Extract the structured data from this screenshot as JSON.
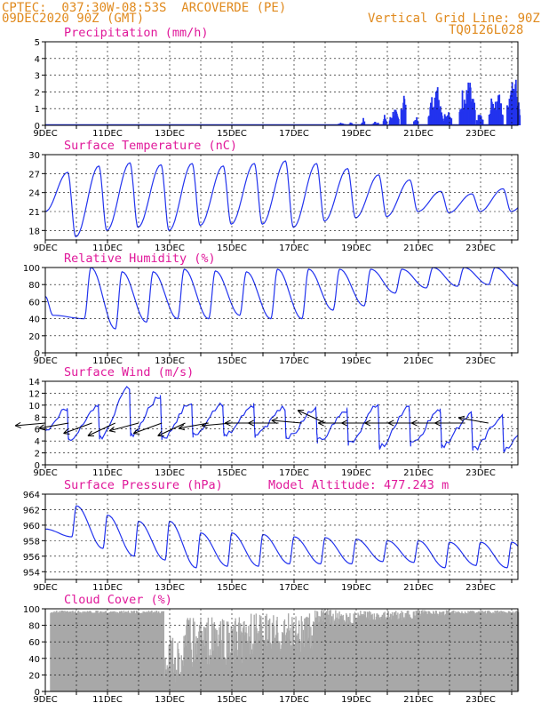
{
  "header": {
    "line1": "CPTEC:  037:30W-08:53S  ARCOVERDE (PE)",
    "line2": "09DEC2020 90Z (GMT)",
    "grid_note": "Vertical Grid Line: 90Z",
    "code": "TQ0126L028"
  },
  "colors": {
    "header": "#e08a1e",
    "title": "#e0189a",
    "line": "#2233ee",
    "cloud": "#a8a8a8",
    "grid": "#000000"
  },
  "x_labels": [
    "9DEC",
    "11DEC",
    "13DEC",
    "15DEC",
    "17DEC",
    "19DEC",
    "21DEC",
    "23DEC"
  ],
  "chart_data": [
    {
      "type": "bar",
      "title": "Precipitation (mm/h)",
      "ylim": [
        0,
        5
      ],
      "yticks": [
        0,
        1,
        2,
        3,
        4,
        5
      ],
      "x_unit": "days since 9DEC",
      "bursts": [
        [
          9.5,
          0.1,
          0.2
        ],
        [
          9.8,
          0.05,
          0.3
        ],
        [
          10.2,
          0.05,
          0.5
        ],
        [
          10.6,
          0.1,
          0.3
        ],
        [
          10.9,
          0.05,
          0.8
        ],
        [
          11.2,
          0.15,
          1.2
        ],
        [
          11.5,
          0.08,
          2.5
        ],
        [
          11.9,
          0.07,
          0.6
        ],
        [
          12.4,
          0.1,
          1.8
        ],
        [
          12.6,
          0.15,
          2.7
        ],
        [
          12.9,
          0.15,
          1.0
        ],
        [
          13.4,
          0.1,
          2.5
        ],
        [
          13.6,
          0.2,
          3.0
        ],
        [
          13.95,
          0.1,
          0.9
        ],
        [
          14.35,
          0.1,
          2.0
        ],
        [
          14.55,
          0.15,
          2.3
        ],
        [
          14.95,
          0.12,
          3.3
        ],
        [
          15.1,
          0.15,
          2.9
        ]
      ]
    },
    {
      "type": "line",
      "title": "Surface Temperature (nC)",
      "ylim": [
        16.5,
        30
      ],
      "yticks": [
        18,
        21,
        24,
        27,
        30
      ],
      "start": 21,
      "peak_hour": 0.22,
      "trough_hour": 0.98,
      "maxima": [
        27.2,
        28.2,
        28.7,
        28.4,
        28.6,
        28.2,
        28.6,
        29.0,
        28.6,
        27.8,
        26.8,
        26.0,
        24.2,
        23.8,
        24.6,
        24.0
      ],
      "minima": [
        17.0,
        18.0,
        18.5,
        18.0,
        18.8,
        19.0,
        19.0,
        18.5,
        19.5,
        20.0,
        20.2,
        21.0,
        20.8,
        21.0,
        21.0,
        20.5,
        21.0
      ]
    },
    {
      "type": "line",
      "title": "Relative Humidity (%)",
      "ylim": [
        0,
        100
      ],
      "yticks": [
        0,
        20,
        40,
        60,
        80,
        100
      ],
      "start": 66,
      "peak_hour": 0.97,
      "trough_hour": 0.25,
      "maxima": [
        100,
        95,
        95,
        98,
        96,
        95,
        98,
        98,
        98,
        98,
        98,
        100,
        100,
        100,
        100,
        100,
        100
      ],
      "minima": [
        44,
        40,
        28,
        36,
        40,
        40,
        44,
        40,
        40,
        50,
        55,
        70,
        76,
        78,
        80,
        78
      ]
    },
    {
      "type": "line",
      "title": "Surface Wind (m/s)",
      "ylim": [
        0,
        14
      ],
      "yticks": [
        0,
        2,
        4,
        6,
        8,
        10,
        12,
        14
      ],
      "start": 6,
      "peak_hour": 0.2,
      "trough_hour": 0.75,
      "maxima": [
        9.5,
        9.8,
        13.0,
        11.5,
        10.5,
        10.0,
        10.0,
        9.6,
        9.4,
        9.2,
        10.0,
        9.5,
        9.0,
        8.5,
        8.0,
        8.2
      ],
      "minima": [
        4.0,
        4.5,
        5.0,
        4.5,
        5.0,
        5.0,
        5.0,
        4.5,
        4.0,
        3.5,
        3.0,
        3.5,
        3.2,
        2.6,
        2.5,
        3.5,
        4.5
      ],
      "arrow_angles": [
        185,
        190,
        200,
        205,
        195,
        200,
        205,
        190,
        185,
        180,
        180,
        175,
        155,
        180,
        180,
        180,
        180,
        180,
        180,
        170
      ]
    },
    {
      "type": "line",
      "title": "Surface Pressure (hPa)",
      "note": "Model Altitude: 477.243  m",
      "ylim": [
        953,
        964
      ],
      "yticks": [
        954,
        956,
        958,
        960,
        962,
        964
      ],
      "start": 959.5,
      "peak_hour": 0.5,
      "trough_hour": 0.85,
      "maxima": [
        962.5,
        961.3,
        960.5,
        960.5,
        959.0,
        959.0,
        958.8,
        958.5,
        958.4,
        958.2,
        958.0,
        958.0,
        957.8,
        957.8,
        957.8,
        957.4
      ],
      "minima": [
        958.5,
        957.0,
        956.0,
        955.5,
        954.5,
        954.7,
        954.7,
        955.0,
        955.0,
        955.0,
        955.3,
        955.2,
        954.5,
        954.8,
        954.5,
        954.0
      ]
    },
    {
      "type": "area",
      "title": "Cloud Cover (%)",
      "ylim": [
        0,
        100
      ],
      "yticks": [
        0,
        20,
        40,
        60,
        80,
        100
      ],
      "segments": [
        [
          0.15,
          3.8,
          96,
          2
        ],
        [
          3.8,
          4.5,
          40,
          30
        ],
        [
          4.5,
          5.5,
          60,
          30
        ],
        [
          5.5,
          6.5,
          60,
          30
        ],
        [
          6.5,
          7.5,
          70,
          25
        ],
        [
          7.5,
          8.6,
          70,
          25
        ],
        [
          8.6,
          9.9,
          90,
          10
        ],
        [
          9.9,
          10.9,
          92,
          6
        ],
        [
          10.9,
          11.9,
          92,
          6
        ],
        [
          11.9,
          13.0,
          95,
          4
        ],
        [
          13.0,
          15.2,
          96,
          2
        ]
      ]
    }
  ]
}
